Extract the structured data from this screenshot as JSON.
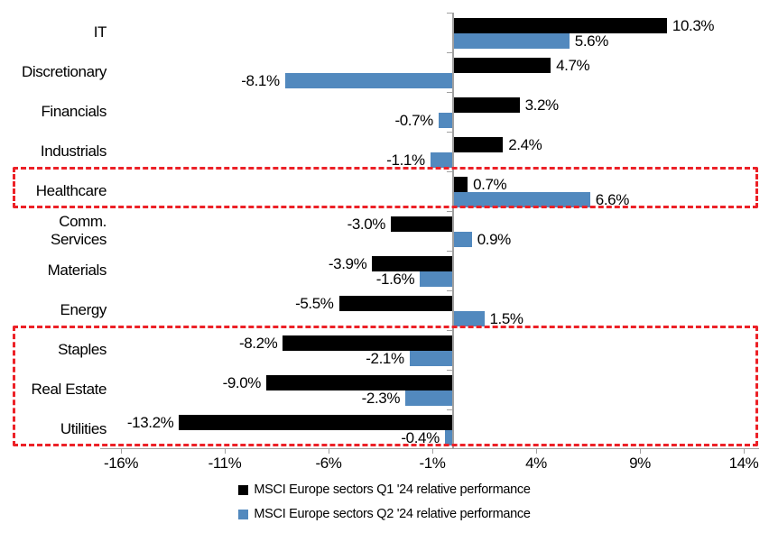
{
  "chart_data": {
    "type": "bar",
    "orientation": "horizontal",
    "title": "",
    "categories": [
      "IT",
      "Discretionary",
      "Financials",
      "Industrials",
      "Healthcare",
      "Comm. Services",
      "Materials",
      "Energy",
      "Staples",
      "Real Estate",
      "Utilities"
    ],
    "series": [
      {
        "name": "MSCI Europe sectors Q1 '24 relative performance",
        "color": "#000000",
        "values": [
          10.3,
          4.7,
          3.2,
          2.4,
          0.7,
          -3.0,
          -3.9,
          -5.5,
          -8.2,
          -9.0,
          -13.2
        ]
      },
      {
        "name": "MSCI Europe sectors Q2 '24 relative performance",
        "color": "#5289be",
        "values": [
          5.6,
          -8.1,
          -0.7,
          -1.1,
          6.6,
          0.9,
          -1.6,
          1.5,
          -2.1,
          -2.3,
          -0.4
        ]
      }
    ],
    "value_labels": [
      [
        "10.3%",
        "4.7%",
        "3.2%",
        "2.4%",
        "0.7%",
        "-3.0%",
        "-3.9%",
        "-5.5%",
        "-8.2%",
        "-9.0%",
        "-13.2%"
      ],
      [
        "5.6%",
        "-8.1%",
        "-0.7%",
        "-1.1%",
        "6.6%",
        "0.9%",
        "-1.6%",
        "1.5%",
        "-2.1%",
        "-2.3%",
        "-0.4%"
      ]
    ],
    "x_ticks": [
      "-16%",
      "-11%",
      "-6%",
      "-1%",
      "4%",
      "9%",
      "14%"
    ],
    "x_tick_values": [
      -16,
      -11,
      -6,
      -1,
      4,
      9,
      14
    ],
    "xlim": [
      -17.0,
      14.7
    ],
    "grid": false,
    "legend_position": "bottom",
    "axis_color": "#a0a0a0",
    "highlight_color": "#ec2127",
    "highlight_boxes": [
      {
        "rows": [
          "Healthcare"
        ]
      },
      {
        "rows": [
          "Staples",
          "Real Estate",
          "Utilities"
        ]
      }
    ]
  }
}
